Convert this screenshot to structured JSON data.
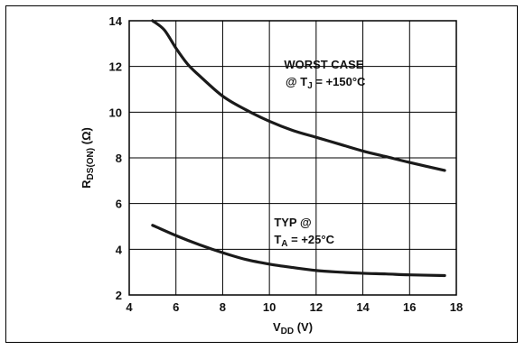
{
  "chart_data": {
    "type": "line",
    "xlabel": {
      "main": "V",
      "sub": "DD",
      "unit": " (V)"
    },
    "ylabel": {
      "main": "R",
      "sub": "DS(ON)",
      "unit": " (Ω)"
    },
    "xlim": [
      4,
      18
    ],
    "ylim": [
      2,
      14
    ],
    "xticks": [
      "4",
      "6",
      "8",
      "10",
      "12",
      "14",
      "16",
      "18"
    ],
    "yticks": [
      "2",
      "4",
      "6",
      "8",
      "10",
      "12",
      "14"
    ],
    "grid": true,
    "series": [
      {
        "name": "WORST CASE @ TJ = +150°C",
        "x": [
          5.0,
          5.5,
          6.0,
          6.5,
          7.0,
          8.0,
          9.0,
          10.0,
          11.0,
          12.0,
          13.0,
          14.0,
          15.0,
          16.0,
          17.5
        ],
        "y": [
          14.0,
          13.6,
          12.8,
          12.1,
          11.6,
          10.7,
          10.1,
          9.6,
          9.2,
          8.9,
          8.6,
          8.3,
          8.05,
          7.8,
          7.45
        ]
      },
      {
        "name": "TYP @ TA = +25°C",
        "x": [
          5.0,
          6.0,
          7.0,
          8.0,
          9.0,
          10.0,
          11.0,
          12.0,
          13.0,
          14.0,
          15.0,
          16.0,
          17.5
        ],
        "y": [
          5.05,
          4.6,
          4.2,
          3.85,
          3.55,
          3.35,
          3.2,
          3.07,
          3.0,
          2.95,
          2.92,
          2.88,
          2.85
        ]
      }
    ],
    "annotations": [
      {
        "lines": [
          {
            "text": "WORST CASE"
          },
          {
            "text": "@ T",
            "sub": "J",
            "rest": " = +150°C"
          }
        ]
      },
      {
        "lines": [
          {
            "text": "TYP @"
          },
          {
            "text": "T",
            "sub": "A",
            "rest": " = +25°C"
          }
        ]
      }
    ]
  }
}
